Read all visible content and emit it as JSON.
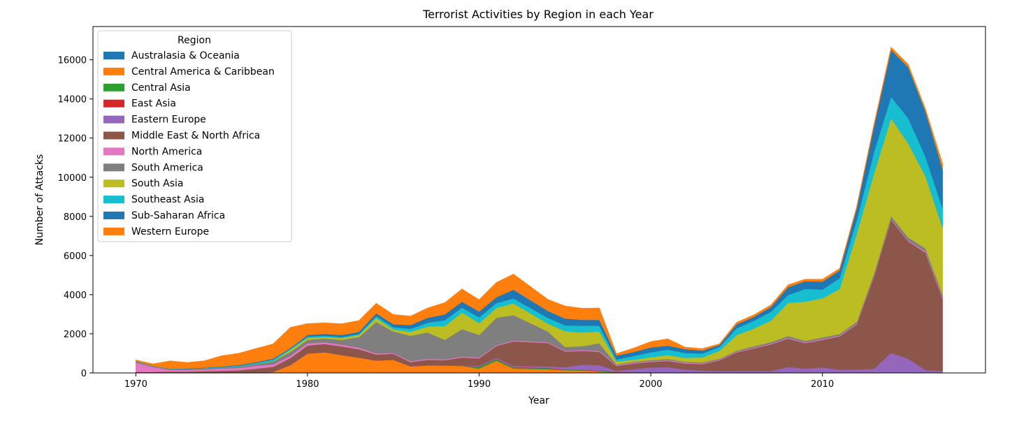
{
  "chart_data": {
    "type": "area",
    "stacked": true,
    "title": "Terrorist Activities by Region in each Year",
    "xlabel": "Year",
    "ylabel": "Number of Attacks",
    "xlim": [
      1967.5,
      2019.5
    ],
    "ylim": [
      0,
      17700
    ],
    "xticks": [
      1970,
      1980,
      1990,
      2000,
      2010
    ],
    "yticks": [
      0,
      2000,
      4000,
      6000,
      8000,
      10000,
      12000,
      14000,
      16000
    ],
    "grid": false,
    "legend": {
      "title": "Region",
      "placement": "top-left"
    },
    "x": [
      1970,
      1971,
      1972,
      1973,
      1974,
      1975,
      1976,
      1977,
      1978,
      1979,
      1980,
      1981,
      1982,
      1983,
      1984,
      1985,
      1986,
      1987,
      1988,
      1989,
      1990,
      1991,
      1992,
      1994,
      1995,
      1996,
      1997,
      1998,
      1999,
      2000,
      2001,
      2002,
      2003,
      2004,
      2005,
      2006,
      2007,
      2008,
      2009,
      2010,
      2011,
      2012,
      2013,
      2014,
      2015,
      2016,
      2017
    ],
    "series": [
      {
        "name": "Australasia & Oceania",
        "color": "#1f77b4",
        "values": [
          1,
          1,
          8,
          1,
          1,
          2,
          7,
          4,
          2,
          12,
          3,
          3,
          10,
          2,
          10,
          8,
          7,
          4,
          3,
          18,
          18,
          19,
          20,
          15,
          12,
          36,
          20,
          8,
          10,
          5,
          6,
          8,
          3,
          12,
          5,
          4,
          6,
          9,
          1,
          5,
          4,
          7,
          10,
          6,
          8,
          14,
          9
        ]
      },
      {
        "name": "Central America & Caribbean",
        "color": "#ff7f0e",
        "values": [
          7,
          5,
          5,
          2,
          3,
          2,
          2,
          3,
          53,
          390,
          990,
          1050,
          900,
          780,
          620,
          660,
          330,
          380,
          370,
          340,
          200,
          600,
          200,
          170,
          120,
          80,
          50,
          10,
          8,
          5,
          3,
          3,
          2,
          2,
          1,
          1,
          1,
          1,
          2,
          2,
          1,
          1,
          1,
          1,
          1,
          1,
          2
        ]
      },
      {
        "name": "Central Asia",
        "color": "#2ca02c",
        "values": [
          0,
          0,
          0,
          0,
          0,
          0,
          0,
          0,
          0,
          0,
          0,
          0,
          0,
          0,
          0,
          0,
          0,
          0,
          0,
          0,
          100,
          80,
          60,
          40,
          20,
          30,
          25,
          30,
          20,
          15,
          15,
          10,
          10,
          10,
          8,
          6,
          4,
          5,
          6,
          5,
          4,
          3,
          6,
          8,
          6,
          4,
          2
        ]
      },
      {
        "name": "East Asia",
        "color": "#d62728",
        "values": [
          2,
          1,
          2,
          1,
          5,
          2,
          3,
          5,
          5,
          3,
          4,
          3,
          2,
          5,
          8,
          6,
          6,
          12,
          10,
          12,
          15,
          16,
          20,
          25,
          20,
          18,
          15,
          10,
          12,
          10,
          8,
          6,
          8,
          10,
          8,
          10,
          8,
          10,
          12,
          15,
          10,
          8,
          15,
          12,
          10,
          8,
          6
        ]
      },
      {
        "name": "Eastern Europe",
        "color": "#9467bd",
        "values": [
          12,
          5,
          3,
          2,
          2,
          3,
          3,
          4,
          5,
          2,
          5,
          3,
          4,
          3,
          5,
          5,
          10,
          15,
          20,
          20,
          35,
          60,
          60,
          80,
          120,
          260,
          290,
          50,
          150,
          250,
          260,
          150,
          100,
          60,
          80,
          80,
          80,
          280,
          200,
          260,
          150,
          160,
          180,
          1000,
          700,
          120,
          80
        ]
      },
      {
        "name": "Middle East & North Africa",
        "color": "#8c564b",
        "values": [
          30,
          40,
          50,
          60,
          80,
          100,
          120,
          200,
          250,
          350,
          400,
          420,
          440,
          420,
          300,
          300,
          200,
          260,
          250,
          400,
          380,
          600,
          1250,
          1200,
          800,
          700,
          680,
          250,
          280,
          280,
          320,
          300,
          330,
          550,
          950,
          1150,
          1360,
          1450,
          1300,
          1400,
          1700,
          2300,
          4700,
          6800,
          6000,
          6000,
          3700
        ]
      },
      {
        "name": "North America",
        "color": "#e377c2",
        "values": [
          480,
          250,
          90,
          90,
          90,
          120,
          120,
          150,
          120,
          120,
          110,
          90,
          90,
          80,
          60,
          40,
          50,
          50,
          40,
          50,
          45,
          45,
          45,
          40,
          40,
          40,
          40,
          40,
          40,
          40,
          40,
          40,
          40,
          35,
          35,
          35,
          35,
          40,
          40,
          40,
          40,
          40,
          40,
          40,
          45,
          60,
          70
        ]
      },
      {
        "name": "South America",
        "color": "#7f7f7f",
        "values": [
          60,
          40,
          40,
          50,
          50,
          40,
          70,
          90,
          150,
          200,
          180,
          190,
          240,
          550,
          1600,
          1100,
          1300,
          1350,
          1000,
          1400,
          1150,
          1400,
          1300,
          550,
          200,
          200,
          400,
          40,
          50,
          50,
          60,
          50,
          50,
          50,
          50,
          80,
          80,
          90,
          80,
          90,
          80,
          100,
          120,
          150,
          150,
          160,
          150
        ]
      },
      {
        "name": "South Asia",
        "color": "#bcbd22",
        "values": [
          1,
          1,
          1,
          1,
          1,
          1,
          1,
          5,
          20,
          100,
          100,
          80,
          100,
          100,
          200,
          100,
          200,
          300,
          700,
          850,
          600,
          500,
          600,
          400,
          800,
          700,
          600,
          150,
          100,
          150,
          200,
          200,
          250,
          400,
          800,
          900,
          1100,
          1700,
          2000,
          2000,
          2300,
          4500,
          5100,
          5000,
          4800,
          3700,
          3400
        ]
      },
      {
        "name": "Southeast Asia",
        "color": "#17becf",
        "values": [
          10,
          10,
          8,
          5,
          20,
          30,
          40,
          50,
          80,
          60,
          70,
          60,
          50,
          60,
          100,
          120,
          150,
          200,
          300,
          250,
          300,
          250,
          250,
          300,
          300,
          350,
          300,
          100,
          200,
          250,
          280,
          250,
          200,
          200,
          350,
          400,
          450,
          400,
          650,
          450,
          550,
          700,
          1100,
          1100,
          1300,
          1000,
          1000
        ]
      },
      {
        "name": "Sub-Saharan Africa",
        "color": "#1f77b4",
        "values": [
          10,
          10,
          10,
          20,
          20,
          30,
          40,
          40,
          50,
          40,
          80,
          100,
          100,
          100,
          150,
          150,
          200,
          250,
          300,
          300,
          300,
          300,
          450,
          350,
          350,
          300,
          300,
          200,
          200,
          250,
          200,
          200,
          150,
          100,
          200,
          200,
          250,
          400,
          400,
          400,
          400,
          600,
          1300,
          2400,
          2600,
          2300,
          2000
        ]
      },
      {
        "name": "Western Europe",
        "color": "#ff7f0e",
        "values": [
          50,
          100,
          400,
          300,
          350,
          550,
          600,
          700,
          750,
          1050,
          580,
          560,
          580,
          580,
          500,
          500,
          450,
          500,
          600,
          650,
          600,
          750,
          800,
          590,
          640,
          590,
          600,
          100,
          200,
          300,
          350,
          100,
          100,
          60,
          100,
          100,
          100,
          120,
          100,
          120,
          100,
          100,
          140,
          130,
          150,
          140,
          280
        ]
      }
    ]
  }
}
